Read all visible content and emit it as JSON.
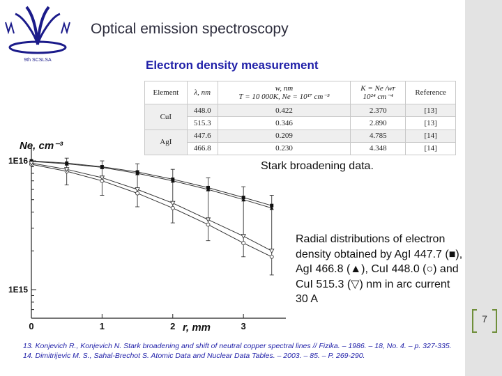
{
  "slide": {
    "title": "Optical emission spectroscopy",
    "subtitle": "Electron density measurement",
    "page_number": "7"
  },
  "logo": {
    "text": "9th SCSLSA",
    "color": "#1b1b8a"
  },
  "table": {
    "headers": {
      "element": "Element",
      "lambda": "λ, nm",
      "w_line1": "w, nm",
      "w_line2": "T = 10 000K, Ne = 10¹⁷ cm⁻³",
      "k_line1": "K = Ne /wr",
      "k_line2": "10²⁴ cm⁻⁴",
      "reference": "Reference"
    },
    "rows": [
      {
        "element": "CuI",
        "lambda": "448.0",
        "w": "0.422",
        "k": "2.370",
        "ref": "[13]"
      },
      {
        "element": "",
        "lambda": "515.3",
        "w": "0.346",
        "k": "2.890",
        "ref": "[13]"
      },
      {
        "element": "AgI",
        "lambda": "447.6",
        "w": "0.209",
        "k": "4.785",
        "ref": "[14]"
      },
      {
        "element": "",
        "lambda": "466.8",
        "w": "0.230",
        "k": "4.348",
        "ref": "[14]"
      }
    ]
  },
  "captions": {
    "stark": "Stark broadening data.",
    "radial": "Radial distributions of electron density obtained by AgI 447.7 (■), AgI 466.8 (▲), CuI 448.0 (○) and CuI 515.3 (▽) nm in arc current 30 A"
  },
  "references": [
    "13. Konjevich R., Konjevich N. Stark broadening and shift of neutral copper spectral lines // Fizika. – 1986. – 18, No. 4. – p. 327-335.",
    "14. Dimitrijevic M. S., Sahal-Brechot S. Atomic Data and Nuclear Data Tables. – 2003. – 85. – P. 269-290."
  ],
  "chart_data": {
    "type": "line",
    "ylabel": "Ne, cm⁻³",
    "xlabel": "r, mm",
    "yscale": "log",
    "xlim": [
      0,
      3.6
    ],
    "ylim": [
      600000000000000.0,
      1.3e+16
    ],
    "x_ticks": [
      "0",
      "1",
      "2",
      "3"
    ],
    "y_ticks": [
      "1E16",
      "1E15"
    ],
    "series": [
      {
        "name": "AgI 447.7",
        "marker": "filled-square",
        "x": [
          0,
          0.5,
          1.0,
          1.5,
          2.0,
          2.5,
          3.0,
          3.4
        ],
        "y": [
          1e+16,
          9600000000000000.0,
          9000000000000000.0,
          8200000000000000.0,
          7200000000000000.0,
          6200000000000000.0,
          5200000000000000.0,
          4500000000000000.0
        ]
      },
      {
        "name": "AgI 466.8",
        "marker": "filled-triangle",
        "x": [
          0,
          0.5,
          1.0,
          1.5,
          2.0,
          2.5,
          3.0,
          3.4
        ],
        "y": [
          9900000000000000.0,
          9500000000000000.0,
          8900000000000000.0,
          8000000000000000.0,
          7000000000000000.0,
          6000000000000000.0,
          5000000000000000.0,
          4300000000000000.0
        ]
      },
      {
        "name": "CuI 448.0",
        "marker": "open-circle",
        "x": [
          0,
          0.5,
          1.0,
          1.5,
          2.0,
          2.5,
          3.0,
          3.4
        ],
        "y": [
          9400000000000000.0,
          8300000000000000.0,
          7000000000000000.0,
          5600000000000000.0,
          4300000000000000.0,
          3200000000000000.0,
          2300000000000000.0,
          1800000000000000.0
        ]
      },
      {
        "name": "CuI 515.3",
        "marker": "open-triangle-down",
        "x": [
          0,
          0.5,
          1.0,
          1.5,
          2.0,
          2.5,
          3.0,
          3.4
        ],
        "y": [
          9600000000000000.0,
          8600000000000000.0,
          7400000000000000.0,
          6000000000000000.0,
          4700000000000000.0,
          3500000000000000.0,
          2600000000000000.0,
          2000000000000000.0
        ]
      }
    ],
    "error_bars": {
      "x": [
        0.5,
        1.0,
        1.5,
        2.0,
        2.5,
        3.0,
        3.4
      ],
      "low": [
        6500000000000000.0,
        5400000000000000.0,
        4400000000000000.0,
        3300000000000000.0,
        2400000000000000.0,
        1800000000000000.0,
        1300000000000000.0
      ],
      "high": [
        1.05e+16,
        1e+16,
        9500000000000000.0,
        8600000000000000.0,
        7400000000000000.0,
        6300000000000000.0,
        5400000000000000.0
      ]
    }
  }
}
